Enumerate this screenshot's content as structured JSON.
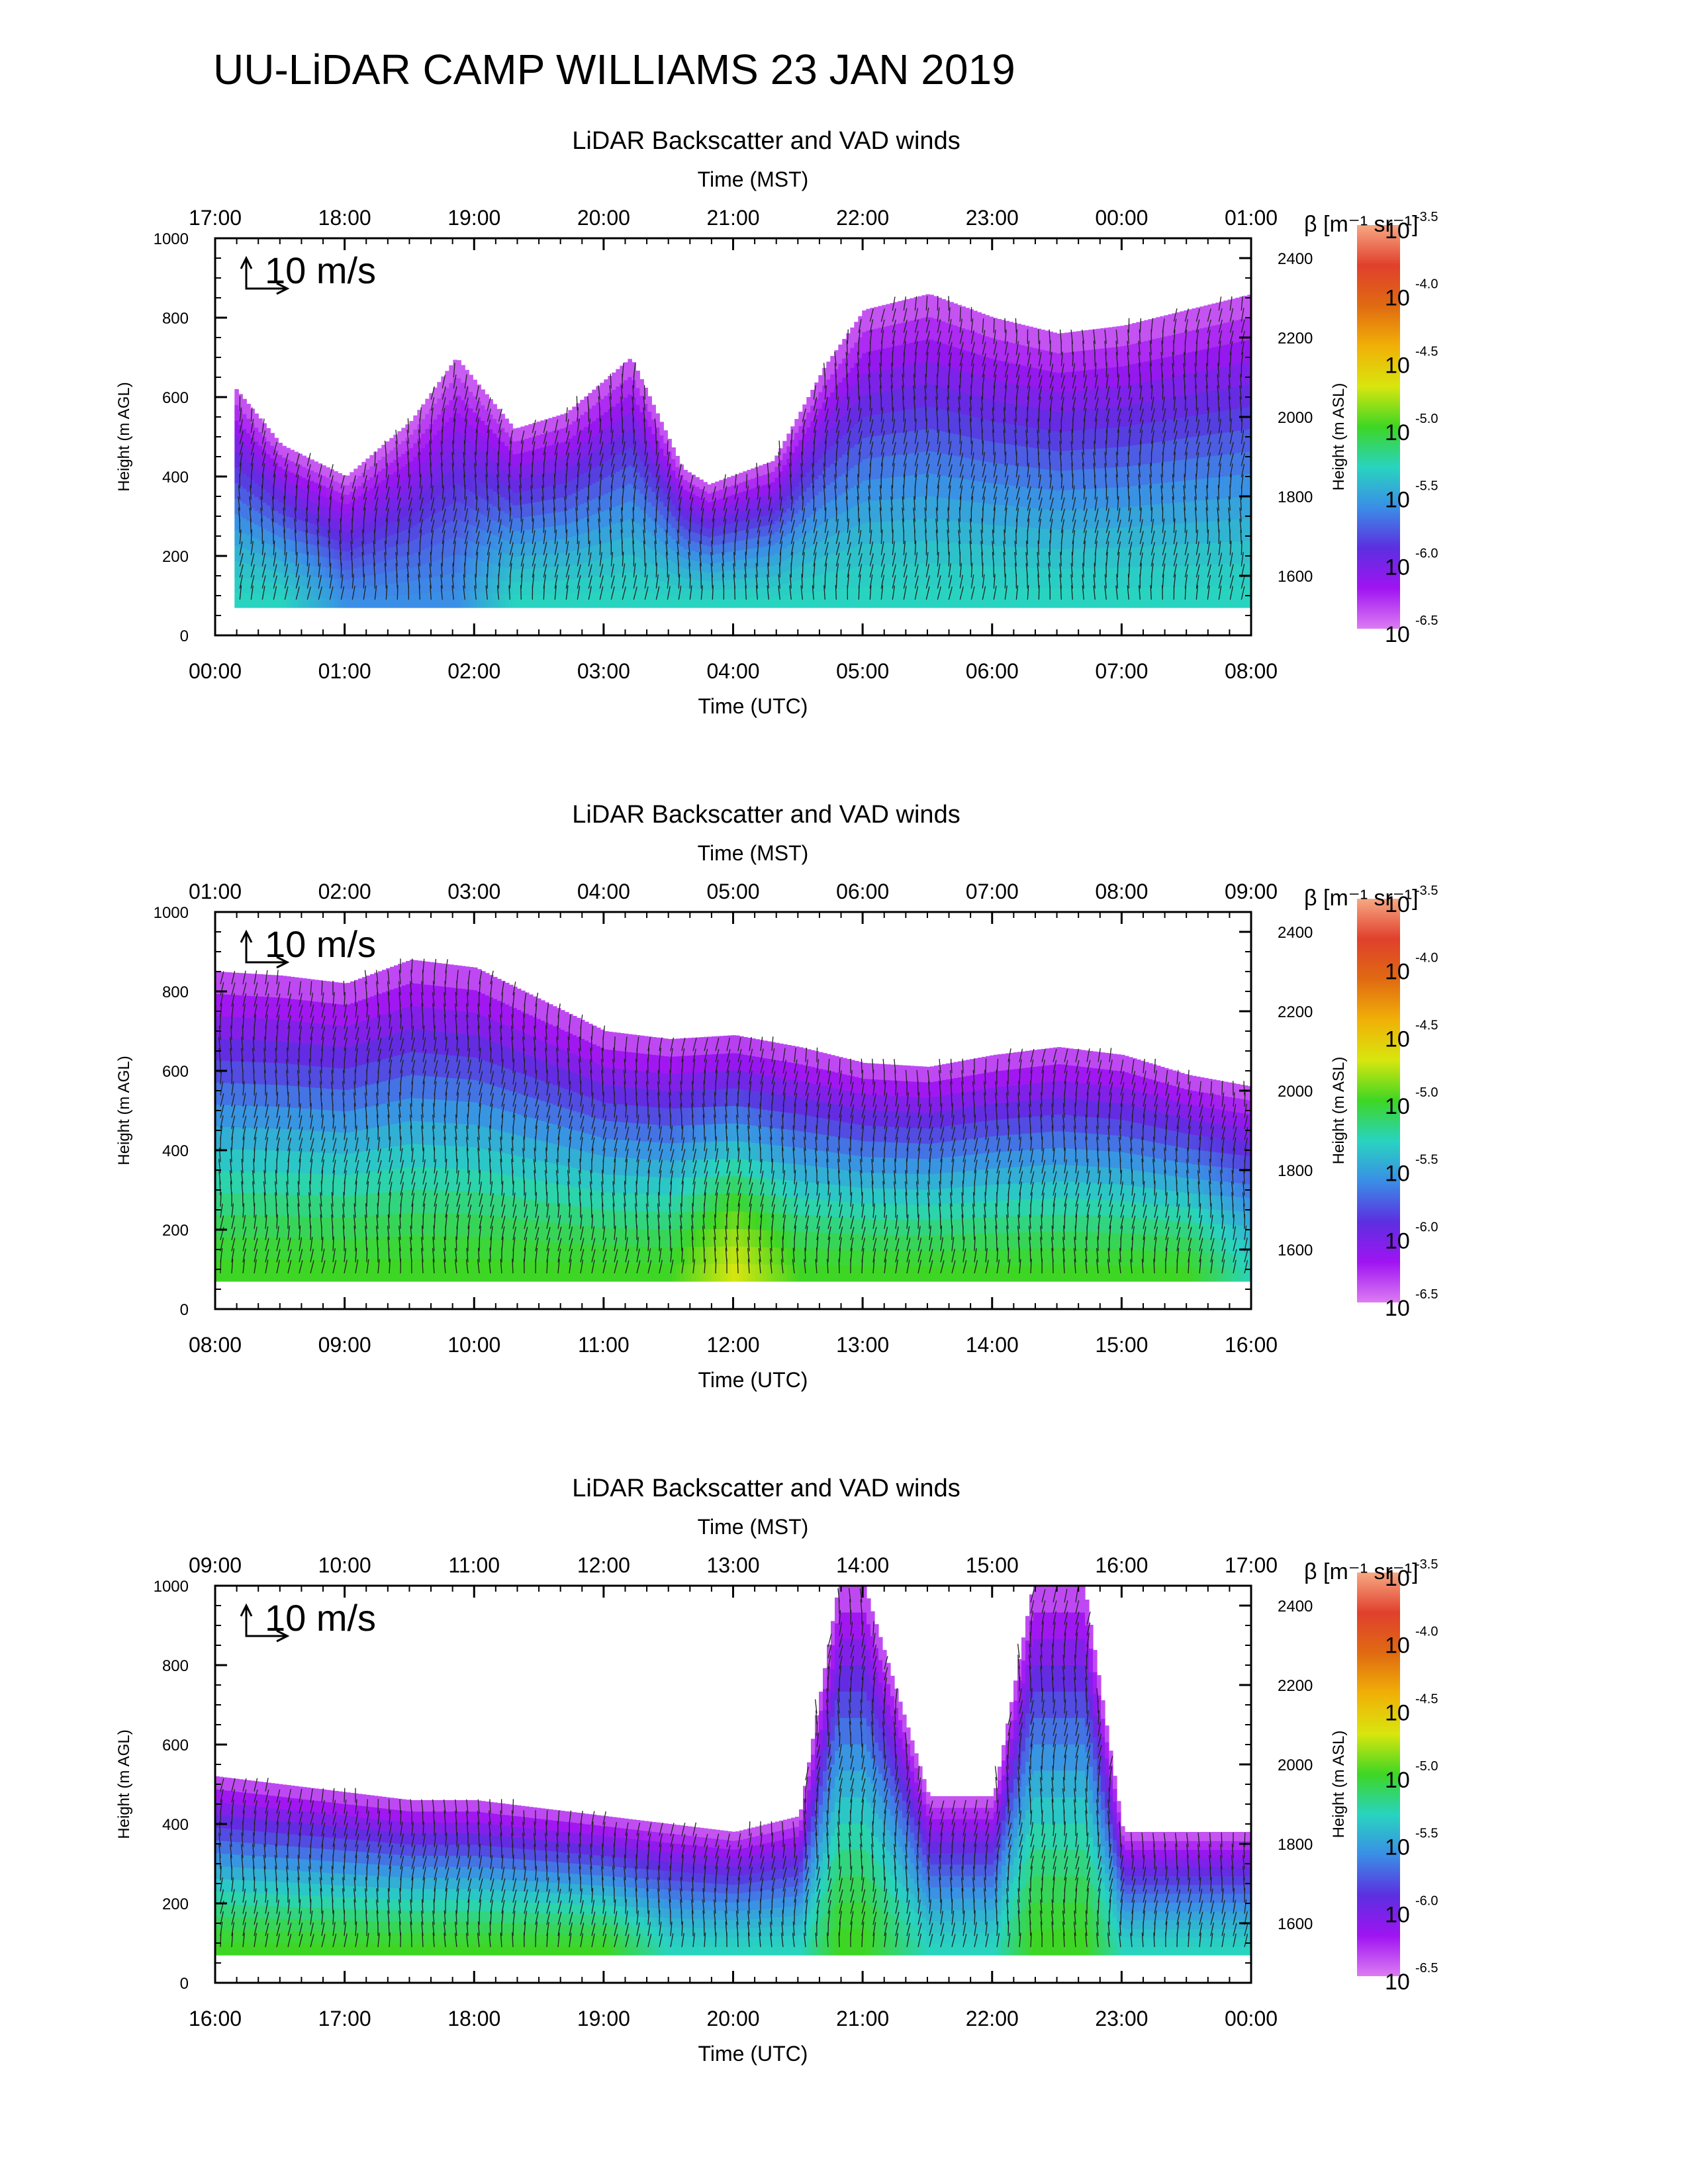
{
  "figure": {
    "title": "UU-LiDAR CAMP WILLIAMS 23 JAN 2019"
  },
  "colorbar": {
    "label": "β [m⁻¹ sr⁻¹]",
    "tick_base": "10",
    "exponents": [
      "-3.5",
      "-4.0",
      "-4.5",
      "-5.0",
      "-5.5",
      "-6.0",
      "-6.5"
    ],
    "colors": [
      "#f7a884",
      "#e0402c",
      "#e06a12",
      "#f1b007",
      "#d8e60e",
      "#3ed624",
      "#28d4c0",
      "#3a8ee6",
      "#5c2fe0",
      "#9f14f2",
      "#dc7cf2"
    ]
  },
  "chart_data": [
    {
      "type": "heatmap",
      "title": "LiDAR Backscatter and VAD winds",
      "xlabel": "Time (UTC)",
      "top_xlabel": "Time (MST)",
      "ylabel": "Height (m AGL)",
      "y2label": "Height (m ASL)",
      "x_ticks": [
        "00:00",
        "01:00",
        "02:00",
        "03:00",
        "04:00",
        "05:00",
        "06:00",
        "07:00",
        "08:00"
      ],
      "top_x_ticks": [
        "17:00",
        "18:00",
        "19:00",
        "20:00",
        "21:00",
        "22:00",
        "23:00",
        "00:00",
        "01:00"
      ],
      "y_ticks": [
        "0",
        "200",
        "400",
        "600",
        "800",
        "1000"
      ],
      "y2_ticks": [
        "1600",
        "1800",
        "2000",
        "2200",
        "2400"
      ],
      "ylim": [
        0,
        1000
      ],
      "y2lim": [
        1450,
        2450
      ],
      "reference_vector": "10 m/s",
      "time_utc_hours": [
        0.15,
        0.5,
        1.0,
        1.5,
        1.85,
        2.3,
        2.7,
        3.2,
        3.6,
        3.8,
        4.3,
        4.7,
        5.0,
        5.5,
        6.0,
        6.5,
        7.0,
        7.5,
        8.0
      ],
      "signal_top_m": [
        620,
        480,
        400,
        540,
        700,
        520,
        560,
        700,
        420,
        380,
        440,
        680,
        820,
        860,
        800,
        760,
        780,
        820,
        860
      ],
      "signal_bottom_m": 70,
      "color_index_profiles": {
        "note_free": "",
        "levels": [
          6,
          6,
          7,
          7,
          7,
          6,
          6,
          6,
          6,
          6,
          6,
          6,
          6,
          6,
          6,
          6,
          6,
          6,
          6
        ]
      }
    },
    {
      "type": "heatmap",
      "title": "LiDAR Backscatter and VAD winds",
      "xlabel": "Time (UTC)",
      "top_xlabel": "Time (MST)",
      "ylabel": "Height (m AGL)",
      "y2label": "Height (m ASL)",
      "x_ticks": [
        "08:00",
        "09:00",
        "10:00",
        "11:00",
        "12:00",
        "13:00",
        "14:00",
        "15:00",
        "16:00"
      ],
      "top_x_ticks": [
        "01:00",
        "02:00",
        "03:00",
        "04:00",
        "05:00",
        "06:00",
        "07:00",
        "08:00",
        "09:00"
      ],
      "y_ticks": [
        "0",
        "200",
        "400",
        "600",
        "800",
        "1000"
      ],
      "y2_ticks": [
        "1600",
        "1800",
        "2000",
        "2200",
        "2400"
      ],
      "ylim": [
        0,
        1000
      ],
      "y2lim": [
        1450,
        2450
      ],
      "reference_vector": "10 m/s",
      "time_utc_hours": [
        8.0,
        8.5,
        9.0,
        9.5,
        10.0,
        10.5,
        11.0,
        11.5,
        12.0,
        12.5,
        13.0,
        13.5,
        14.0,
        14.5,
        15.0,
        15.5,
        16.0
      ],
      "signal_top_m": [
        850,
        840,
        820,
        880,
        860,
        780,
        700,
        680,
        690,
        660,
        620,
        610,
        640,
        660,
        640,
        590,
        560
      ],
      "signal_bottom_m": 70,
      "color_index_profiles": {
        "levels": [
          5,
          5,
          5,
          5,
          5,
          5,
          5,
          5,
          4,
          5,
          5,
          5,
          5,
          5,
          5,
          5,
          6
        ]
      }
    },
    {
      "type": "heatmap",
      "title": "LiDAR Backscatter and VAD winds",
      "xlabel": "Time (UTC)",
      "top_xlabel": "Time (MST)",
      "ylabel": "Height (m AGL)",
      "y2label": "Height (m ASL)",
      "x_ticks": [
        "16:00",
        "17:00",
        "18:00",
        "19:00",
        "20:00",
        "21:00",
        "22:00",
        "23:00",
        "00:00"
      ],
      "top_x_ticks": [
        "09:00",
        "10:00",
        "11:00",
        "12:00",
        "13:00",
        "14:00",
        "15:00",
        "16:00",
        "17:00"
      ],
      "y_ticks": [
        "0",
        "200",
        "400",
        "600",
        "800",
        "1000"
      ],
      "y2_ticks": [
        "1600",
        "1800",
        "2000",
        "2200",
        "2400"
      ],
      "ylim": [
        0,
        1000
      ],
      "y2lim": [
        1450,
        2450
      ],
      "reference_vector": "10 m/s",
      "time_utc_hours": [
        16.0,
        16.5,
        17.0,
        17.5,
        18.0,
        18.5,
        19.0,
        19.5,
        20.0,
        20.5,
        20.8,
        21.0,
        21.5,
        22.0,
        22.3,
        22.7,
        23.0,
        23.5,
        24.0
      ],
      "signal_top_m": [
        520,
        500,
        480,
        460,
        460,
        440,
        420,
        400,
        380,
        420,
        1000,
        1000,
        470,
        470,
        1000,
        1000,
        380,
        380,
        380
      ],
      "signal_bottom_m": 70,
      "color_index_profiles": {
        "levels": [
          5,
          5,
          5,
          5,
          5,
          5,
          5,
          6,
          6,
          6,
          5,
          5,
          6,
          6,
          5,
          5,
          6,
          6,
          6
        ]
      }
    }
  ]
}
